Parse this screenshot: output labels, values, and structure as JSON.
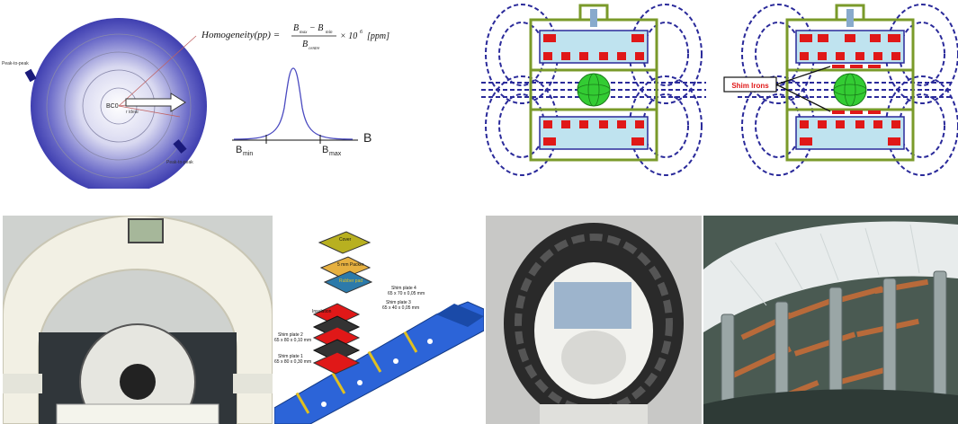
{
  "homogeneity": {
    "formula_lhs": "Homogeneity(pp) =",
    "formula_num": "B",
    "formula_sub_max": "max",
    "formula_minus": "− B",
    "formula_sub_min": "min",
    "formula_den": "B",
    "formula_sub_centre": "centre",
    "formula_tail": "× 10",
    "formula_exp": "6",
    "formula_unit": "[ppm]",
    "peak_label_top": "Peak-to-peak",
    "peak_label_bottom": "Peak-to-peak",
    "center_label": "BC0",
    "radius_label": "r ideal",
    "bmin_label": "B",
    "bmin_sub": "min",
    "bmax_label": "B",
    "bmax_sub": "max",
    "axis_label": "B"
  },
  "dipole": {
    "shim_label": "Shim Irons"
  },
  "shim_stack": {
    "cover": "Cover",
    "packer": "5 mm Packer",
    "rubber": "Rubber pad",
    "insulation": "Insulation",
    "plate4_name": "Shim plate 4",
    "plate4_dims": "65 x 70 x 0,05 mm",
    "plate3_name": "Shim plate 3",
    "plate3_dims": "65 x 40 x 0,05 mm",
    "plate2_name": "Shim plate 2",
    "plate2_dims": "65 x 80 x 0,10 mm",
    "plate1_name": "Shim plate 1",
    "plate1_dims": "65 x 80 x 0,30 mm"
  },
  "colors": {
    "disk_outer": "#3f3fb0",
    "dipole_yoke": "#7a9a2a",
    "dipole_coil": "#bfe3ef",
    "dipole_field": "#2a2a9a",
    "sphere": "#33cc33",
    "shim_red": "#e01818",
    "rail_blue": "#2c64d8"
  }
}
